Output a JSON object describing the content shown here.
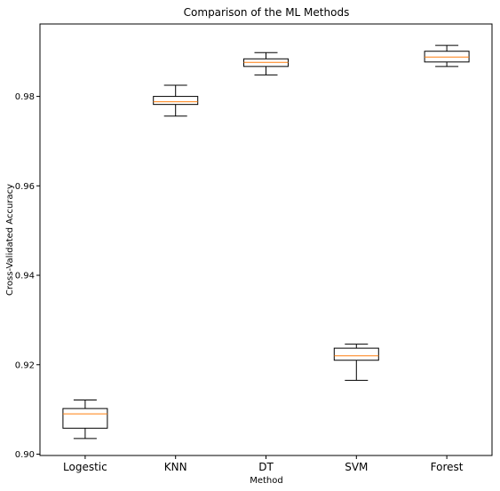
{
  "chart_data": {
    "type": "box",
    "title": "Comparison of the ML Methods",
    "xlabel": "Method",
    "ylabel": "Cross-Validated Accuracy",
    "ylim": [
      0.8997,
      0.9962
    ],
    "yticks": [
      0.9,
      0.92,
      0.94,
      0.96,
      0.98
    ],
    "ytick_labels": [
      "0.90",
      "0.92",
      "0.94",
      "0.96",
      "0.98"
    ],
    "grid": false,
    "legend": "none",
    "categories": [
      "Logestic",
      "KNN",
      "DT",
      "SVM",
      "Forest"
    ],
    "boxes": [
      {
        "name": "Logestic",
        "whisker_low": 0.9035,
        "q1": 0.9058,
        "median": 0.909,
        "q3": 0.9102,
        "whisker_high": 0.9121
      },
      {
        "name": "KNN",
        "whisker_low": 0.9756,
        "q1": 0.9782,
        "median": 0.9788,
        "q3": 0.98,
        "whisker_high": 0.9825
      },
      {
        "name": "DT",
        "whisker_low": 0.9848,
        "q1": 0.9867,
        "median": 0.9876,
        "q3": 0.9884,
        "whisker_high": 0.9898
      },
      {
        "name": "SVM",
        "whisker_low": 0.9165,
        "q1": 0.921,
        "median": 0.922,
        "q3": 0.9237,
        "whisker_high": 0.9246
      },
      {
        "name": "Forest",
        "whisker_low": 0.9867,
        "q1": 0.9877,
        "median": 0.9888,
        "q3": 0.9901,
        "whisker_high": 0.9914
      }
    ],
    "colors": {
      "box": "#000000",
      "median": "#ff7f0e",
      "background": "#ffffff"
    }
  }
}
